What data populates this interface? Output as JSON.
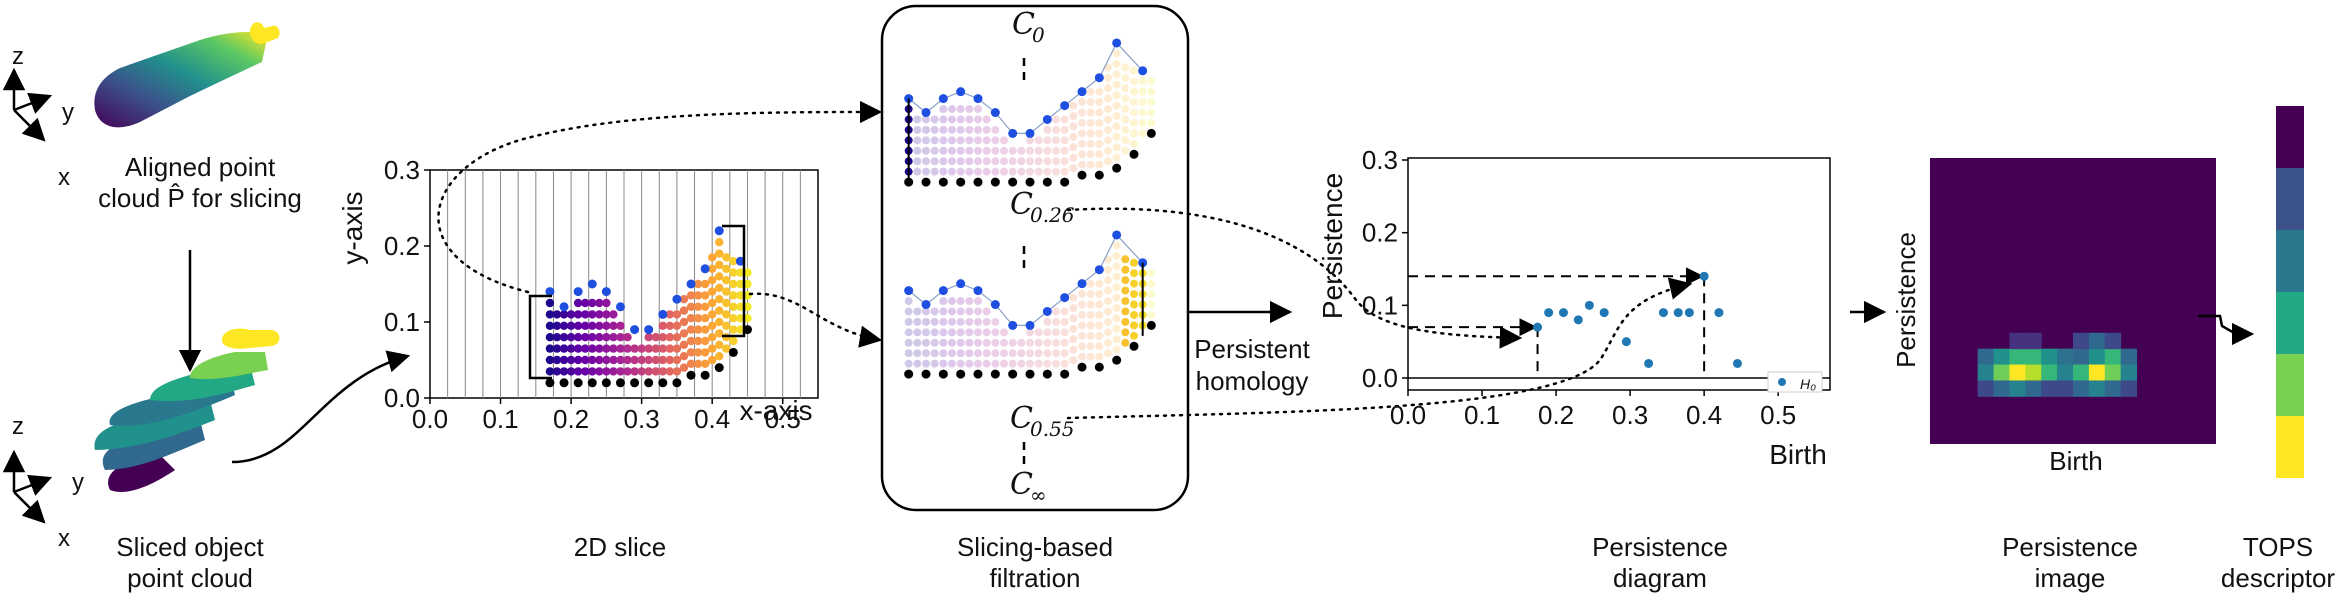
{
  "stages": {
    "aligned": {
      "caption": "Aligned point\ncloud P̂ for slicing",
      "axes": [
        "z",
        "y",
        "x"
      ]
    },
    "sliced": {
      "caption": "Sliced object\npoint cloud",
      "axes": [
        "z",
        "y",
        "x"
      ]
    },
    "slice2d": {
      "caption": "2D slice"
    },
    "filtration": {
      "caption": "Slicing-based\nfiltration",
      "levels": [
        "C",
        "0",
        "0.26",
        "0.55",
        "∞"
      ]
    },
    "homology": {
      "caption": "Persistent\nhomology"
    },
    "diagram": {
      "caption": "Persistence\ndiagram"
    },
    "image": {
      "caption": "Persistence\nimage",
      "xlabel": "Birth",
      "ylabel": "Persistence"
    },
    "descriptor": {
      "caption": "TOPS\ndescriptor",
      "colors": [
        "#440154",
        "#3b528b",
        "#2a788e",
        "#22a884",
        "#7ad151",
        "#fde725"
      ]
    }
  },
  "chart_data": [
    {
      "type": "scatter",
      "xlabel": "x-axis",
      "ylabel": "y-axis",
      "xlim": [
        0.0,
        0.55
      ],
      "ylim": [
        0.0,
        0.3
      ],
      "xticks": [
        "0.0",
        "0.1",
        "0.2",
        "0.3",
        "0.4",
        "0.5"
      ],
      "yticks": [
        "0.0",
        "0.1",
        "0.2",
        "0.3"
      ],
      "grid": "vertical slice lines every 0.025",
      "top_points": [
        [
          0.17,
          0.14
        ],
        [
          0.19,
          0.12
        ],
        [
          0.21,
          0.14
        ],
        [
          0.23,
          0.15
        ],
        [
          0.25,
          0.14
        ],
        [
          0.27,
          0.12
        ],
        [
          0.29,
          0.09
        ],
        [
          0.31,
          0.09
        ],
        [
          0.33,
          0.11
        ],
        [
          0.35,
          0.13
        ],
        [
          0.37,
          0.15
        ],
        [
          0.39,
          0.17
        ],
        [
          0.41,
          0.22
        ],
        [
          0.44,
          0.18
        ]
      ],
      "bottom_points": [
        [
          0.17,
          0.02
        ],
        [
          0.19,
          0.02
        ],
        [
          0.21,
          0.02
        ],
        [
          0.23,
          0.02
        ],
        [
          0.25,
          0.02
        ],
        [
          0.27,
          0.02
        ],
        [
          0.29,
          0.02
        ],
        [
          0.31,
          0.02
        ],
        [
          0.33,
          0.02
        ],
        [
          0.35,
          0.02
        ],
        [
          0.37,
          0.03
        ],
        [
          0.39,
          0.03
        ],
        [
          0.41,
          0.04
        ],
        [
          0.43,
          0.06
        ],
        [
          0.45,
          0.09
        ]
      ]
    },
    {
      "type": "scatter",
      "xlabel": "Birth",
      "ylabel": "Persistence",
      "xlim": [
        0.0,
        0.57
      ],
      "ylim": [
        0.0,
        0.3
      ],
      "xticks": [
        "0.0",
        "0.1",
        "0.2",
        "0.3",
        "0.4",
        "0.5"
      ],
      "yticks": [
        "0.0",
        "0.1",
        "0.2",
        "0.3"
      ],
      "legend": {
        "placement": "bottom-right",
        "label": "H₀"
      },
      "series": [
        {
          "name": "H₀",
          "points": [
            [
              0.175,
              0.07
            ],
            [
              0.19,
              0.09
            ],
            [
              0.21,
              0.09
            ],
            [
              0.23,
              0.08
            ],
            [
              0.245,
              0.1
            ],
            [
              0.265,
              0.09
            ],
            [
              0.295,
              0.05
            ],
            [
              0.325,
              0.02
            ],
            [
              0.345,
              0.09
            ],
            [
              0.365,
              0.09
            ],
            [
              0.38,
              0.09
            ],
            [
              0.4,
              0.14
            ],
            [
              0.42,
              0.09
            ],
            [
              0.445,
              0.02
            ]
          ]
        }
      ],
      "annotations": [
        {
          "birth": 0.175,
          "persistence": 0.07
        },
        {
          "birth": 0.4,
          "persistence": 0.14
        }
      ]
    }
  ]
}
